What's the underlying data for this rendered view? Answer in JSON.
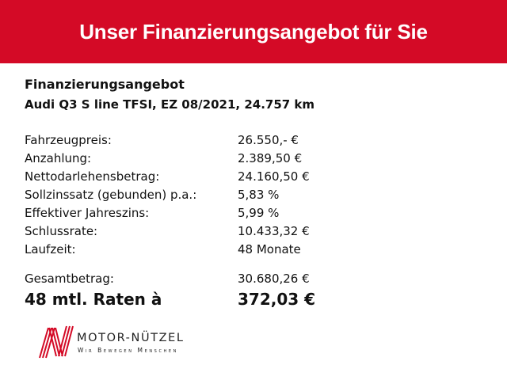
{
  "header": {
    "title": "Unser Finanzierungsangebot für Sie",
    "color": "#d40a26"
  },
  "offer": {
    "heading": "Finanzierungsangebot",
    "vehicle": "Audi Q3 S line TFSI, EZ 08/2021, 24.757 km",
    "rows": [
      {
        "label": "Fahrzeugpreis:",
        "value": "26.550,- €"
      },
      {
        "label": "Anzahlung:",
        "value": "2.389,50 €"
      },
      {
        "label": "Nettodarlehensbetrag:",
        "value": "24.160,50 €"
      },
      {
        "label": "Sollzinssatz (gebunden) p.a.:",
        "value": "5,83 %"
      },
      {
        "label": "Effektiver Jahreszins:",
        "value": "5,99 %"
      },
      {
        "label": "Schlussrate:",
        "value": "10.433,32 €"
      },
      {
        "label": "Laufzeit:",
        "value": "48 Monate"
      }
    ],
    "total": {
      "label": "Gesamtbetrag:",
      "value": "30.680,26 €"
    },
    "rate": {
      "label": "48 mtl. Raten à",
      "value": "372,03 €"
    }
  },
  "logo": {
    "name": "MOTOR-NÜTZEL",
    "tagline": "Wir Bewegen Menschen"
  }
}
